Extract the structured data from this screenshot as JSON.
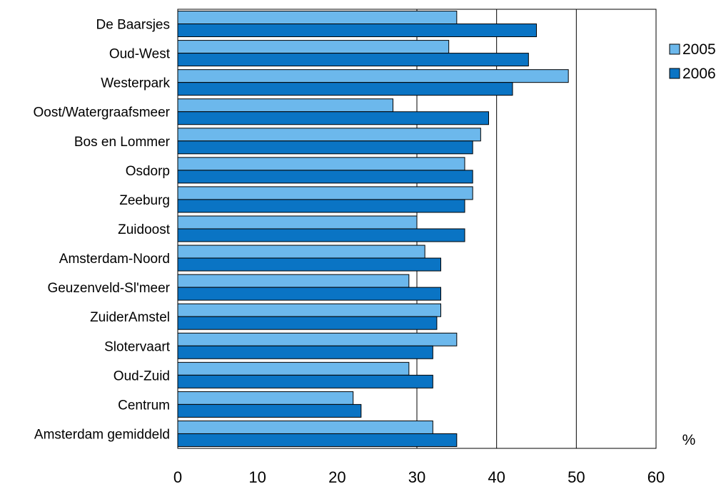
{
  "chart_data": {
    "type": "bar",
    "orientation": "horizontal",
    "categories": [
      "De Baarsjes",
      "Oud-West",
      "Westerpark",
      "Oost/Watergraafsmeer",
      "Bos en Lommer",
      "Osdorp",
      "Zeeburg",
      "Zuidoost",
      "Amsterdam-Noord",
      "Geuzenveld-Sl'meer",
      "ZuiderAmstel",
      "Slotervaart",
      "Oud-Zuid",
      "Centrum",
      "Amsterdam gemiddeld"
    ],
    "series": [
      {
        "name": "2005",
        "color": "#6CB8EC",
        "values": [
          35,
          34,
          49,
          27,
          38,
          36,
          37,
          30,
          31,
          29,
          33,
          35,
          29,
          22,
          32
        ]
      },
      {
        "name": "2006",
        "color": "#0A74C4",
        "values": [
          45,
          44,
          42,
          39,
          37,
          37,
          36,
          36,
          33,
          33,
          32.5,
          32,
          32,
          23,
          35
        ]
      }
    ],
    "x_ticks": [
      "0",
      "10",
      "20",
      "30",
      "40",
      "50",
      "60"
    ],
    "xlim": [
      0,
      60
    ],
    "gridlines": [
      30,
      40,
      50
    ],
    "unit_label": "%",
    "legend_position": "right",
    "title": "",
    "xlabel": "",
    "ylabel": ""
  }
}
